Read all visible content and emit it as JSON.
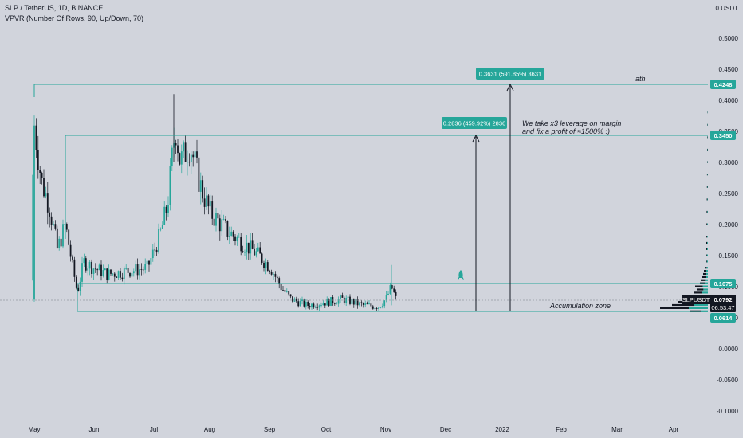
{
  "header": {
    "symbol_line": "SLP / TetherUS, 1D, BINANCE",
    "indicator_line": "VPVR (Number Of Rows, 90, Up/Down, 70)"
  },
  "colors": {
    "background": "#d1d4dc",
    "teal": "#26a69a",
    "candle_up": "#26a69a",
    "candle_down": "#131722",
    "label_dark": "#131722"
  },
  "axis": {
    "y_unit": "0 USDT",
    "y_ticks": [
      "0.5000",
      "0.4500",
      "0.4000",
      "0.3500",
      "0.3000",
      "0.2500",
      "0.2000",
      "0.1500",
      "0.1000",
      "0.0500",
      "0.0000",
      "-0.0500",
      "-0.1000"
    ],
    "x_ticks": [
      "May",
      "Jun",
      "Jul",
      "Aug",
      "Sep",
      "Oct",
      "Nov",
      "Dec",
      "2022",
      "Feb",
      "Mar",
      "Apr"
    ]
  },
  "price_labels": {
    "ath": "0.4248",
    "target": "0.3450",
    "resistance": "0.1075",
    "current": "0.0792",
    "support": "0.0614",
    "symbol": "SLPUSDT",
    "countdown": "06:53:47"
  },
  "annotations": {
    "ath_text": "ath",
    "profit_line1": "We take x3 leverage on margin",
    "profit_line2": "and fix a profit of ≈1500% :)",
    "zone_text": "Accumulation zone",
    "measure1": "0.2836 (459.92%) 2836",
    "measure2": "0.3631 (591.85%) 3631"
  },
  "chart_data": {
    "type": "candlestick",
    "symbol": "SLP / TetherUS",
    "timeframe": "1D",
    "exchange": "BINANCE",
    "x_range": [
      "May",
      "Apr"
    ],
    "ylim": [
      -0.1,
      0.5
    ],
    "levels": {
      "ath": 0.4248,
      "target": 0.345,
      "resistance": 0.1075,
      "current": 0.0792,
      "support": 0.0614
    },
    "approx_closes": [
      {
        "x": "May",
        "y": 0.36
      },
      {
        "x": "May",
        "y": 0.27
      },
      {
        "x": "May",
        "y": 0.2
      },
      {
        "x": "May",
        "y": 0.14
      },
      {
        "x": "Jun",
        "y": 0.13
      },
      {
        "x": "Jun",
        "y": 0.125
      },
      {
        "x": "Jul",
        "y": 0.22
      },
      {
        "x": "Jul",
        "y": 0.38
      },
      {
        "x": "Jul",
        "y": 0.33
      },
      {
        "x": "Aug",
        "y": 0.22
      },
      {
        "x": "Aug",
        "y": 0.17
      },
      {
        "x": "Sep",
        "y": 0.11
      },
      {
        "x": "Sep",
        "y": 0.08
      },
      {
        "x": "Oct",
        "y": 0.075
      },
      {
        "x": "Oct",
        "y": 0.07
      },
      {
        "x": "Nov",
        "y": 0.1
      },
      {
        "x": "Nov",
        "y": 0.0792
      }
    ]
  }
}
